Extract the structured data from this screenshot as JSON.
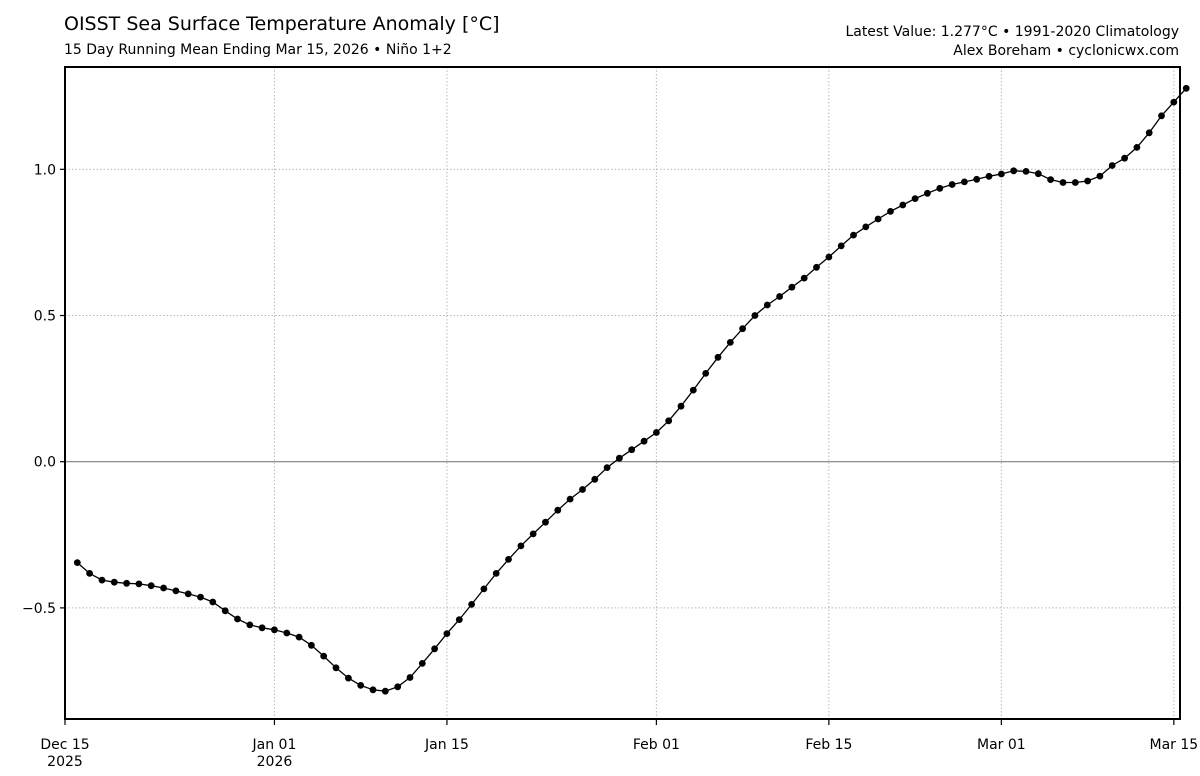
{
  "header": {
    "title": "OISST Sea Surface Temperature Anomaly [°C]",
    "subtitle": "15 Day Running Mean Ending Mar 15, 2026 • Niño 1+2",
    "latest": "Latest Value: 1.277°C • 1991-2020 Climatology",
    "credit": "Alex Boreham • cyclonicwx.com"
  },
  "chart_data": {
    "type": "line",
    "title": "OISST Sea Surface Temperature Anomaly [°C]",
    "xlabel": "",
    "ylabel": "",
    "x_range_days": [
      0,
      90.5
    ],
    "ylim": [
      -0.88,
      1.35
    ],
    "yticks": [
      {
        "value": -0.5,
        "label": "−0.5"
      },
      {
        "value": 0.0,
        "label": "0.0"
      },
      {
        "value": 0.5,
        "label": "0.5"
      },
      {
        "value": 1.0,
        "label": "1.0"
      }
    ],
    "xticks": [
      {
        "day": 0,
        "label": "Dec 15",
        "sublabel": "2025"
      },
      {
        "day": 17,
        "label": "Jan 01",
        "sublabel": "2026"
      },
      {
        "day": 31,
        "label": "Jan 15",
        "sublabel": ""
      },
      {
        "day": 48,
        "label": "Feb 01",
        "sublabel": ""
      },
      {
        "day": 62,
        "label": "Feb 15",
        "sublabel": ""
      },
      {
        "day": 76,
        "label": "Mar 01",
        "sublabel": ""
      },
      {
        "day": 90,
        "label": "Mar 15",
        "sublabel": ""
      }
    ],
    "grid": true,
    "zero_line": true,
    "x_start_day": 1,
    "series": [
      {
        "name": "Niño 1+2 SST anomaly (°C)",
        "start_date": "2025-12-16",
        "values": [
          -0.345,
          -0.382,
          -0.405,
          -0.412,
          -0.416,
          -0.418,
          -0.424,
          -0.432,
          -0.442,
          -0.452,
          -0.463,
          -0.48,
          -0.51,
          -0.538,
          -0.558,
          -0.568,
          -0.575,
          -0.586,
          -0.6,
          -0.628,
          -0.665,
          -0.705,
          -0.74,
          -0.765,
          -0.78,
          -0.785,
          -0.77,
          -0.738,
          -0.69,
          -0.64,
          -0.588,
          -0.54,
          -0.488,
          -0.435,
          -0.382,
          -0.334,
          -0.288,
          -0.247,
          -0.207,
          -0.166,
          -0.128,
          -0.095,
          -0.06,
          -0.02,
          0.012,
          0.041,
          0.07,
          0.1,
          0.14,
          0.19,
          0.245,
          0.302,
          0.357,
          0.408,
          0.455,
          0.5,
          0.536,
          0.565,
          0.597,
          0.628,
          0.665,
          0.7,
          0.738,
          0.775,
          0.803,
          0.83,
          0.856,
          0.878,
          0.9,
          0.918,
          0.935,
          0.948,
          0.957,
          0.966,
          0.976,
          0.984,
          0.995,
          0.993,
          0.985,
          0.965,
          0.955,
          0.955,
          0.96,
          0.977,
          1.013,
          1.038,
          1.075,
          1.125,
          1.183,
          1.23,
          1.277
        ]
      }
    ]
  }
}
